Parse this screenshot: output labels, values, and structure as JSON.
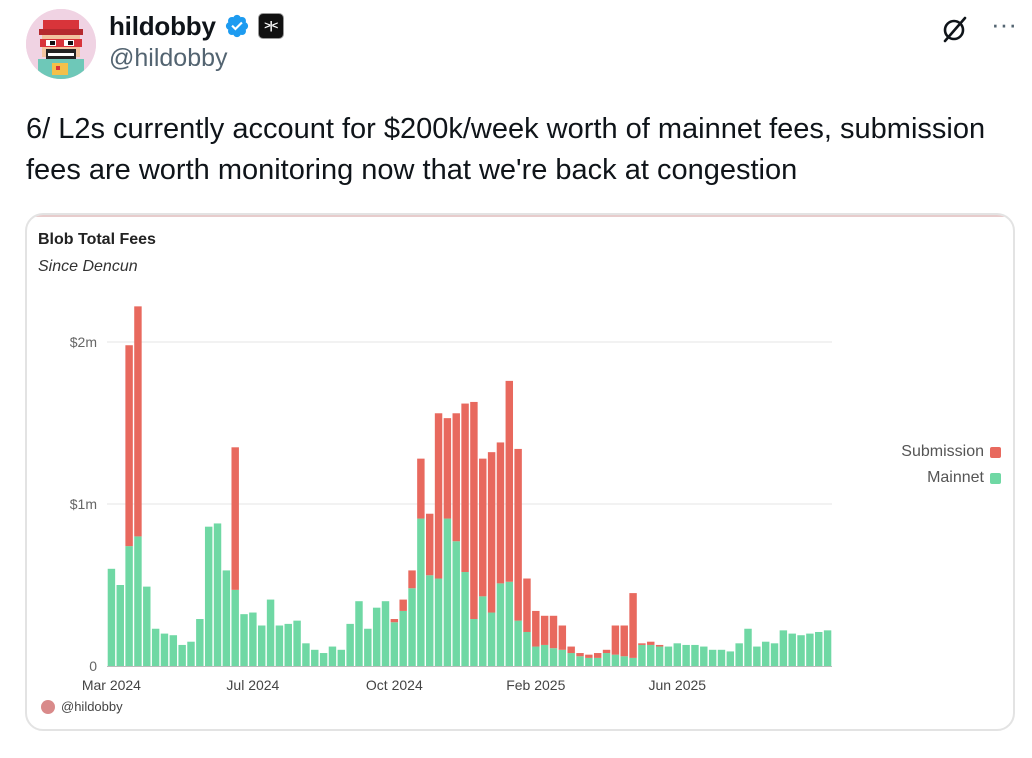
{
  "author": {
    "display_name": "hildobby",
    "handle": "@hildobby",
    "verified_icon": "verified-badge-icon",
    "affiliate_badge": ">|<"
  },
  "tweet": {
    "text": "6/ L2s currently account for $200k/week worth of mainnet fees, submission fees are worth monitoring now that we're back at congestion"
  },
  "colors": {
    "mainnet": "#6fd8a4",
    "submission": "#e8695e",
    "verified": "#1d9bf0"
  },
  "chart_data": {
    "type": "bar",
    "stacked": true,
    "title": "Blob Total Fees",
    "subtitle": "Since Dencun",
    "y_ticks": [
      "0",
      "$1m",
      "$2m"
    ],
    "ylim": [
      0,
      2300000
    ],
    "x_ticks": [
      "Mar 2024",
      "Jul 2024",
      "Oct 2024",
      "Feb 2025",
      "Jun 2025"
    ],
    "x_tick_index": [
      0,
      16,
      32,
      48,
      64
    ],
    "legend": [
      "Submission",
      "Mainnet"
    ],
    "legend_position": "right",
    "grid": true,
    "watermark": "@hildobby",
    "series": [
      {
        "name": "Mainnet",
        "values": [
          600000,
          500000,
          740000,
          800000,
          490000,
          230000,
          200000,
          190000,
          130000,
          150000,
          290000,
          860000,
          880000,
          590000,
          470000,
          320000,
          330000,
          250000,
          410000,
          250000,
          260000,
          280000,
          140000,
          100000,
          80000,
          120000,
          100000,
          260000,
          400000,
          230000,
          360000,
          400000,
          270000,
          340000,
          480000,
          910000,
          560000,
          540000,
          910000,
          770000,
          580000,
          290000,
          430000,
          330000,
          510000,
          520000,
          280000,
          210000,
          120000,
          130000,
          110000,
          100000,
          80000,
          60000,
          50000,
          50000,
          80000,
          70000,
          60000,
          50000,
          130000,
          130000,
          120000,
          120000,
          140000,
          130000,
          130000,
          120000,
          100000,
          100000,
          90000,
          140000,
          230000,
          120000,
          150000,
          140000,
          220000,
          200000,
          190000,
          200000,
          210000,
          220000
        ]
      },
      {
        "name": "Submission",
        "values": [
          0,
          0,
          1240000,
          1420000,
          0,
          0,
          0,
          0,
          0,
          0,
          0,
          0,
          0,
          0,
          880000,
          0,
          0,
          0,
          0,
          0,
          0,
          0,
          0,
          0,
          0,
          0,
          0,
          0,
          0,
          0,
          0,
          0,
          20000,
          70000,
          110000,
          370000,
          380000,
          1020000,
          620000,
          790000,
          1040000,
          1340000,
          850000,
          990000,
          870000,
          1240000,
          1060000,
          330000,
          220000,
          180000,
          200000,
          150000,
          40000,
          20000,
          20000,
          30000,
          20000,
          180000,
          190000,
          400000,
          10000,
          20000,
          10000,
          0,
          0,
          0,
          0,
          0,
          0,
          0,
          0,
          0,
          0,
          0,
          0,
          0,
          0,
          0,
          0,
          0,
          0,
          0
        ]
      }
    ]
  }
}
